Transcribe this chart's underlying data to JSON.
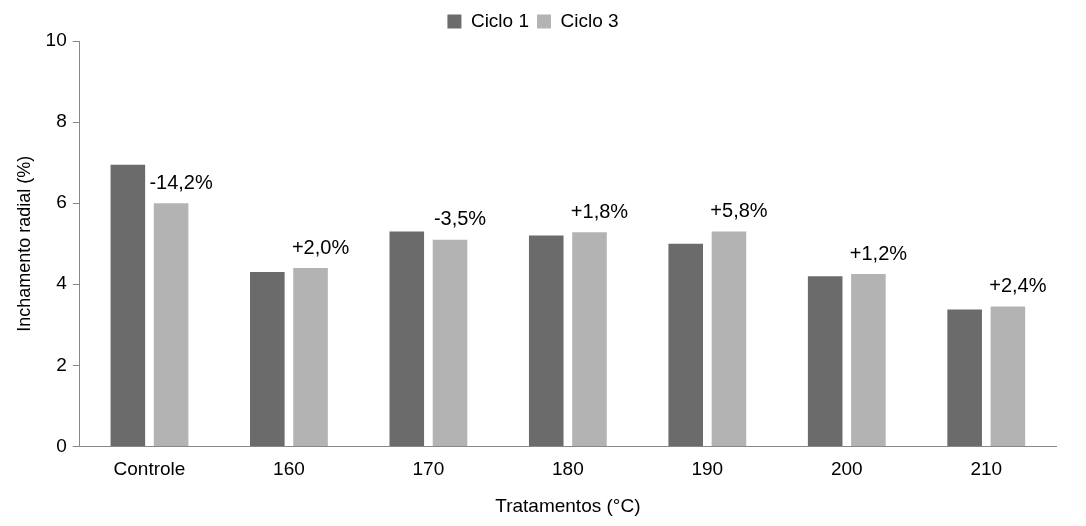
{
  "chart_data": {
    "type": "bar",
    "xlabel": "Tratamentos (°C)",
    "ylabel": "Inchamento radial (%)",
    "categories": [
      "Controle",
      "160",
      "170",
      "180",
      "190",
      "200",
      "210"
    ],
    "series": [
      {
        "name": "Ciclo 1",
        "color": "#6b6b6b",
        "values": [
          6.95,
          4.3,
          5.3,
          5.2,
          5.0,
          4.2,
          3.38
        ]
      },
      {
        "name": "Ciclo 3",
        "color": "#b3b3b3",
        "values": [
          6.0,
          4.4,
          5.1,
          5.28,
          5.3,
          4.25,
          3.45
        ]
      }
    ],
    "ylim": [
      0,
      10
    ],
    "yticks": [
      0,
      2,
      4,
      6,
      8,
      10
    ],
    "grid": false,
    "legend": "top",
    "annotations": [
      {
        "text": "-14,2%",
        "x": "Controle",
        "y": 6.0
      },
      {
        "text": "+2,0%",
        "x": "160",
        "y": 4.4
      },
      {
        "text": "-3,5%",
        "x": "170",
        "y": 5.1
      },
      {
        "text": "+1,8%",
        "x": "180",
        "y": 5.28
      },
      {
        "text": "+5,8%",
        "x": "190",
        "y": 5.3
      },
      {
        "text": "+1,2%",
        "x": "200",
        "y": 4.25
      },
      {
        "text": "+2,4%",
        "x": "210",
        "y": 3.45
      }
    ]
  }
}
